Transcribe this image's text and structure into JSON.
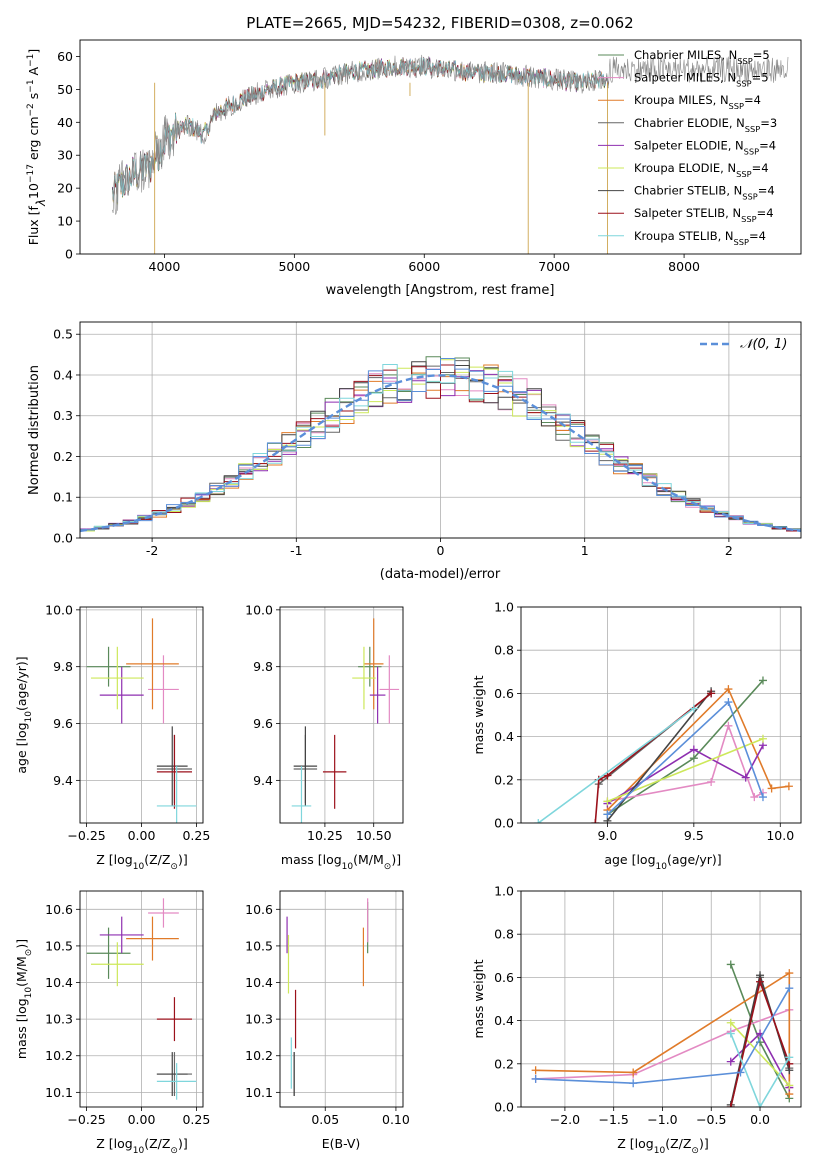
{
  "colors": [
    "#5a8a5a",
    "#e38ac3",
    "#e07b2a",
    "#666666",
    "#8e2fb0",
    "#cde85a",
    "#444444",
    "#9b111b",
    "#7fd6dc"
  ],
  "chart_data": [
    {
      "id": "spectrum",
      "type": "line",
      "title": "PLATE=2665, MJD=54232, FIBERID=0308, z=0.062",
      "xlabel": "wavelength [Angstrom, rest frame]",
      "ylabel": "Flux [f",
      "ylabel_parts": [
        "Flux [f",
        "λ",
        "10",
        "−17",
        " erg cm",
        "−2",
        " s",
        "−1",
        " A",
        "−1",
        "]"
      ],
      "xlim": [
        3350,
        8900
      ],
      "ylim": [
        0,
        65
      ],
      "xticks": [
        4000,
        5000,
        6000,
        7000,
        8000
      ],
      "yticks": [
        0,
        10,
        20,
        30,
        40,
        50,
        60
      ],
      "legend_loc": "upper right",
      "continuum": [
        [
          3600,
          18
        ],
        [
          3750,
          24
        ],
        [
          3900,
          27
        ],
        [
          3950,
          31
        ],
        [
          4050,
          37
        ],
        [
          4200,
          39
        ],
        [
          4300,
          36
        ],
        [
          4400,
          43
        ],
        [
          4600,
          47
        ],
        [
          4800,
          50
        ],
        [
          5000,
          52
        ],
        [
          5200,
          53
        ],
        [
          5400,
          55
        ],
        [
          5600,
          56
        ],
        [
          5800,
          57
        ],
        [
          6000,
          57
        ],
        [
          6200,
          56
        ],
        [
          6400,
          55
        ],
        [
          6600,
          55
        ],
        [
          6800,
          54
        ],
        [
          7000,
          53
        ],
        [
          7200,
          52
        ],
        [
          7400,
          53
        ]
      ],
      "series": [
        {
          "name_parts": [
            "Chabrier MILES, N",
            "SSP",
            "=5"
          ]
        },
        {
          "name_parts": [
            "Salpeter MILES, N",
            "SSP",
            "=5"
          ]
        },
        {
          "name_parts": [
            "Kroupa MILES, N",
            "SSP",
            "=4"
          ]
        },
        {
          "name_parts": [
            "Chabrier ELODIE, N",
            "SSP",
            "=3"
          ]
        },
        {
          "name_parts": [
            "Salpeter ELODIE, N",
            "SSP",
            "=4"
          ]
        },
        {
          "name_parts": [
            "Kroupa ELODIE, N",
            "SSP",
            "=4"
          ]
        },
        {
          "name_parts": [
            "Chabrier STELIB, N",
            "SSP",
            "=4"
          ]
        },
        {
          "name_parts": [
            "Salpeter STELIB, N",
            "SSP",
            "=4"
          ]
        },
        {
          "name_parts": [
            "Kroupa STELIB, N",
            "SSP",
            "=4"
          ]
        }
      ],
      "data_series": [
        {
          "name": "data",
          "color": "#777777",
          "x_range": [
            3600,
            8800
          ],
          "gap": [
            7400,
            7450
          ]
        }
      ]
    },
    {
      "id": "residuals",
      "type": "histogram",
      "xlabel": "(data-model)/error",
      "ylabel": "Normed distribution",
      "xlim": [
        -2.5,
        2.5
      ],
      "ylim": [
        0,
        0.53
      ],
      "xticks": [
        -2,
        -1,
        0,
        1,
        2
      ],
      "yticks": [
        0,
        0.1,
        0.2,
        0.3,
        0.4,
        0.5
      ],
      "bin_width": 0.1,
      "reference": {
        "name": "𝒩(0, 1)",
        "mean": 0,
        "sigma": 1,
        "color": "#5b8fd9"
      },
      "legend_loc": "upper right"
    },
    {
      "id": "age-vs-Z",
      "type": "errorbar",
      "xlabel_parts": [
        "Z [log",
        "10",
        "(Z/Z",
        "⊙",
        ")]"
      ],
      "ylabel_parts": [
        "age  [log",
        "10",
        "(age/yr)]"
      ],
      "xlim": [
        -0.28,
        0.28
      ],
      "ylim": [
        9.25,
        10.01
      ],
      "xticks": [
        -0.25,
        0,
        0.25
      ],
      "xticklabels": [
        "−0.25",
        "0.00",
        "0.25"
      ],
      "yticks": [
        9.4,
        9.6,
        9.8,
        10.0
      ],
      "points": [
        {
          "c": 0,
          "x": -0.15,
          "y": 9.8,
          "xe": 0.1,
          "ye": 0.07
        },
        {
          "c": 1,
          "x": 0.1,
          "y": 9.72,
          "xe": 0.07,
          "ye": 0.12
        },
        {
          "c": 2,
          "x": 0.05,
          "y": 9.81,
          "xe": 0.12,
          "ye": 0.16
        },
        {
          "c": 3,
          "x": 0.15,
          "y": 9.44,
          "xe": 0.08,
          "ye": 0.12
        },
        {
          "c": 4,
          "x": -0.09,
          "y": 9.7,
          "xe": 0.1,
          "ye": 0.1
        },
        {
          "c": 5,
          "x": -0.11,
          "y": 9.76,
          "xe": 0.12,
          "ye": 0.11
        },
        {
          "c": 6,
          "x": 0.14,
          "y": 9.45,
          "xe": 0.07,
          "ye": 0.14
        },
        {
          "c": 7,
          "x": 0.15,
          "y": 9.43,
          "xe": 0.08,
          "ye": 0.13
        },
        {
          "c": 8,
          "x": 0.16,
          "y": 9.31,
          "xe": 0.09,
          "ye": 0.14
        }
      ]
    },
    {
      "id": "age-vs-mass",
      "type": "errorbar",
      "xlabel_parts": [
        "mass [log",
        "10",
        "(M/M",
        "⊙",
        ")]"
      ],
      "ylabel_parts": [],
      "xlim": [
        10.02,
        10.65
      ],
      "ylim": [
        9.25,
        10.01
      ],
      "xticks": [
        10.25,
        10.5
      ],
      "xticklabels": [
        "10.25",
        "10.50"
      ],
      "yticks": [
        9.4,
        9.6,
        9.8,
        10.0
      ],
      "points": [
        {
          "c": 0,
          "x": 10.48,
          "y": 9.8,
          "xe": 0.06,
          "ye": 0.07
        },
        {
          "c": 1,
          "x": 10.58,
          "y": 9.72,
          "xe": 0.05,
          "ye": 0.12
        },
        {
          "c": 2,
          "x": 10.5,
          "y": 9.81,
          "xe": 0.05,
          "ye": 0.16
        },
        {
          "c": 3,
          "x": 10.15,
          "y": 9.44,
          "xe": 0.06,
          "ye": 0.12
        },
        {
          "c": 4,
          "x": 10.52,
          "y": 9.7,
          "xe": 0.04,
          "ye": 0.1
        },
        {
          "c": 5,
          "x": 10.45,
          "y": 9.76,
          "xe": 0.06,
          "ye": 0.11
        },
        {
          "c": 6,
          "x": 10.15,
          "y": 9.45,
          "xe": 0.06,
          "ye": 0.14
        },
        {
          "c": 7,
          "x": 10.3,
          "y": 9.43,
          "xe": 0.06,
          "ye": 0.13
        },
        {
          "c": 8,
          "x": 10.13,
          "y": 9.31,
          "xe": 0.05,
          "ye": 0.14
        }
      ]
    },
    {
      "id": "weight-vs-age",
      "type": "line",
      "xlabel_parts": [
        "age  [log",
        "10",
        "(age/yr)]"
      ],
      "ylabel": "mass weight",
      "xlim": [
        8.5,
        10.12
      ],
      "ylim": [
        0,
        1
      ],
      "xticks": [
        9.0,
        9.5,
        10.0
      ],
      "xticklabels": [
        "9.0",
        "9.5",
        "10.0"
      ],
      "yticks": [
        0,
        0.2,
        0.4,
        0.6,
        0.8,
        1.0
      ],
      "yticklabels": [
        "0.0",
        "0.2",
        "0.4",
        "0.6",
        "0.8",
        "1.0"
      ],
      "series": [
        {
          "c": 0,
          "points": [
            [
              9.0,
              0.04
            ],
            [
              9.5,
              0.3
            ],
            [
              9.9,
              0.66
            ]
          ]
        },
        {
          "c": 1,
          "points": [
            [
              9.0,
              0.1
            ],
            [
              9.6,
              0.19
            ],
            [
              9.7,
              0.45
            ],
            [
              9.85,
              0.12
            ],
            [
              9.9,
              0.14
            ]
          ]
        },
        {
          "c": 2,
          "points": [
            [
              9.0,
              0.06
            ],
            [
              9.7,
              0.62
            ],
            [
              9.95,
              0.16
            ],
            [
              10.05,
              0.17
            ]
          ]
        },
        {
          "c": 3,
          "points": [
            [
              8.95,
              0.18
            ],
            [
              9.6,
              0.6
            ]
          ]
        },
        {
          "c": 4,
          "points": [
            [
              9.0,
              0.09
            ],
            [
              9.5,
              0.34
            ],
            [
              9.8,
              0.21
            ],
            [
              9.9,
              0.36
            ]
          ]
        },
        {
          "c": 5,
          "points": [
            [
              9.0,
              0.1
            ],
            [
              9.9,
              0.39
            ]
          ]
        },
        {
          "c": 6,
          "points": [
            [
              9.0,
              0.01
            ],
            [
              9.6,
              0.61
            ]
          ]
        },
        {
          "c": 7,
          "points": [
            [
              8.93,
              0.0
            ],
            [
              8.95,
              0.2
            ],
            [
              9.0,
              0.22
            ],
            [
              9.6,
              0.6
            ]
          ]
        },
        {
          "c": 8,
          "points": [
            [
              8.6,
              0.0
            ],
            [
              9.5,
              0.53
            ]
          ]
        },
        {
          "c": "blue",
          "points": [
            [
              9.0,
              0.04
            ],
            [
              9.7,
              0.56
            ],
            [
              9.9,
              0.12
            ]
          ]
        }
      ]
    },
    {
      "id": "mass-vs-Z",
      "type": "errorbar",
      "xlabel_parts": [
        "Z [log",
        "10",
        "(Z/Z",
        "⊙",
        ")]"
      ],
      "ylabel_parts": [
        "mass [log",
        "10",
        "(M/M",
        "⊙",
        ")]"
      ],
      "xlim": [
        -0.28,
        0.28
      ],
      "ylim": [
        10.06,
        10.65
      ],
      "xticks": [
        -0.25,
        0,
        0.25
      ],
      "xticklabels": [
        "−0.25",
        "0.00",
        "0.25"
      ],
      "yticks": [
        10.1,
        10.2,
        10.3,
        10.4,
        10.5,
        10.6
      ],
      "points": [
        {
          "c": 0,
          "x": -0.15,
          "y": 10.48,
          "xe": 0.1,
          "ye": 0.07
        },
        {
          "c": 1,
          "x": 0.1,
          "y": 10.59,
          "xe": 0.07,
          "ye": 0.04
        },
        {
          "c": 2,
          "x": 0.05,
          "y": 10.52,
          "xe": 0.12,
          "ye": 0.06
        },
        {
          "c": 3,
          "x": 0.15,
          "y": 10.15,
          "xe": 0.08,
          "ye": 0.06
        },
        {
          "c": 4,
          "x": -0.09,
          "y": 10.53,
          "xe": 0.1,
          "ye": 0.05
        },
        {
          "c": 5,
          "x": -0.11,
          "y": 10.45,
          "xe": 0.12,
          "ye": 0.06
        },
        {
          "c": 6,
          "x": 0.14,
          "y": 10.15,
          "xe": 0.07,
          "ye": 0.06
        },
        {
          "c": 7,
          "x": 0.15,
          "y": 10.3,
          "xe": 0.08,
          "ye": 0.06
        },
        {
          "c": 8,
          "x": 0.16,
          "y": 10.13,
          "xe": 0.09,
          "ye": 0.05
        }
      ]
    },
    {
      "id": "mass-vs-ebv",
      "type": "errorbar",
      "xlabel": "E(B-V)",
      "xlim": [
        0.018,
        0.105
      ],
      "ylim": [
        10.06,
        10.65
      ],
      "xticks": [
        0.05,
        0.1
      ],
      "xticklabels": [
        "0.05",
        "0.10"
      ],
      "yticks": [
        10.1,
        10.2,
        10.3,
        10.4,
        10.5,
        10.6
      ],
      "points": [
        {
          "c": 0,
          "x": 0.08,
          "y": 10.55,
          "xe": 0,
          "ye": 0.07
        },
        {
          "c": 1,
          "x": 0.08,
          "y": 10.57,
          "xe": 0,
          "ye": 0.06
        },
        {
          "c": 2,
          "x": 0.077,
          "y": 10.47,
          "xe": 0,
          "ye": 0.08
        },
        {
          "c": 3,
          "x": 0.028,
          "y": 10.15,
          "xe": 0,
          "ye": 0.06
        },
        {
          "c": 4,
          "x": 0.023,
          "y": 10.53,
          "xe": 0,
          "ye": 0.05
        },
        {
          "c": 5,
          "x": 0.024,
          "y": 10.45,
          "xe": 0,
          "ye": 0.08
        },
        {
          "c": 6,
          "x": 0.028,
          "y": 10.15,
          "xe": 0,
          "ye": 0.06
        },
        {
          "c": 7,
          "x": 0.029,
          "y": 10.3,
          "xe": 0,
          "ye": 0.08
        },
        {
          "c": 8,
          "x": 0.026,
          "y": 10.18,
          "xe": 0,
          "ye": 0.07
        }
      ]
    },
    {
      "id": "weight-vs-Z",
      "type": "line",
      "xlabel_parts": [
        "Z [log",
        "10",
        "(Z/Z",
        "⊙",
        ")]"
      ],
      "ylabel": "mass weight",
      "xlim": [
        -2.45,
        0.42
      ],
      "ylim": [
        0,
        1
      ],
      "xticks": [
        -2.0,
        -1.5,
        -1.0,
        -0.5,
        0.0
      ],
      "xticklabels": [
        "−2.0",
        "−1.5",
        "−1.0",
        "−0.5",
        "0.0"
      ],
      "yticks": [
        0,
        0.2,
        0.4,
        0.6,
        0.8,
        1.0
      ],
      "yticklabels": [
        "0.0",
        "0.2",
        "0.4",
        "0.6",
        "0.8",
        "1.0"
      ],
      "series": [
        {
          "c": 0,
          "points": [
            [
              -0.3,
              0.66
            ],
            [
              0.0,
              0.3
            ],
            [
              0.3,
              0.04
            ]
          ]
        },
        {
          "c": 1,
          "points": [
            [
              -2.3,
              0.13
            ],
            [
              -1.3,
              0.15
            ],
            [
              -0.3,
              0.35
            ],
            [
              0.3,
              0.45
            ],
            [
              0.3,
              0.09
            ]
          ]
        },
        {
          "c": 2,
          "points": [
            [
              -2.3,
              0.17
            ],
            [
              -1.3,
              0.16
            ],
            [
              0.3,
              0.62
            ],
            [
              0.3,
              0.06
            ]
          ]
        },
        {
          "c": 3,
          "points": [
            [
              -0.3,
              0.0
            ],
            [
              0.0,
              0.6
            ],
            [
              0.3,
              0.18
            ]
          ]
        },
        {
          "c": 4,
          "points": [
            [
              -0.3,
              0.21
            ],
            [
              0.0,
              0.34
            ],
            [
              0.3,
              0.09
            ]
          ]
        },
        {
          "c": 5,
          "points": [
            [
              -0.3,
              0.39
            ],
            [
              0.3,
              0.1
            ]
          ]
        },
        {
          "c": 6,
          "points": [
            [
              -0.3,
              0.01
            ],
            [
              0.0,
              0.61
            ],
            [
              0.3,
              0.17
            ]
          ]
        },
        {
          "c": 7,
          "points": [
            [
              -0.3,
              0.0
            ],
            [
              0.0,
              0.58
            ],
            [
              0.3,
              0.2
            ]
          ]
        },
        {
          "c": 8,
          "points": [
            [
              -0.3,
              0.34
            ],
            [
              0.0,
              0.0
            ],
            [
              0.3,
              0.23
            ]
          ]
        },
        {
          "c": "blue",
          "points": [
            [
              -2.3,
              0.13
            ],
            [
              -1.3,
              0.11
            ],
            [
              -0.2,
              0.16
            ],
            [
              0.3,
              0.55
            ]
          ]
        }
      ]
    }
  ]
}
